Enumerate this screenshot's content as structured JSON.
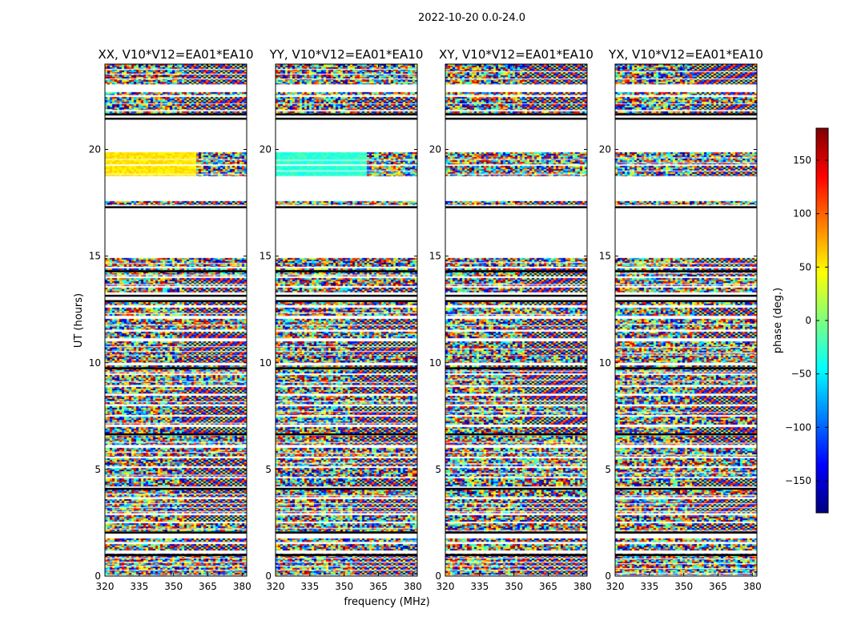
{
  "figure": {
    "title": "2022-10-20 0.0-24.0",
    "xlabel": "frequency (MHz)",
    "ylabel": "UT (hours)"
  },
  "chart_data": {
    "type": "heatmap",
    "title": "2022-10-20 0.0-24.0",
    "xlabel": "frequency (MHz)",
    "ylabel": "UT (hours)",
    "xlim": [
      320,
      382
    ],
    "ylim": [
      0,
      24
    ],
    "x_ticks": [
      "320",
      "335",
      "350",
      "365",
      "380"
    ],
    "y_ticks": [
      "0",
      "5",
      "10",
      "15",
      "20"
    ],
    "colormap": "jet",
    "panels": [
      {
        "title": "XX, V10*V12=EA01*EA10"
      },
      {
        "title": "YY, V10*V12=EA01*EA10"
      },
      {
        "title": "XY, V10*V12=EA01*EA10"
      },
      {
        "title": "YX, V10*V12=EA01*EA10"
      }
    ],
    "colorbar": {
      "label": "phase (deg.)",
      "range": [
        -180,
        180
      ],
      "ticks": [
        "150",
        "100",
        "50",
        "0",
        "−50",
        "−100",
        "−150"
      ],
      "colors": [
        "#00007f",
        "#0000ff",
        "#007fff",
        "#00ffff",
        "#7fff7f",
        "#ffff00",
        "#ff7f00",
        "#ff0000",
        "#7f0000"
      ]
    },
    "data_bands_hours": [
      [
        0.05,
        1.05
      ],
      [
        1.2,
        1.5
      ],
      [
        1.6,
        1.75
      ],
      [
        2.05,
        2.45
      ],
      [
        2.55,
        2.85
      ],
      [
        2.95,
        3.6
      ],
      [
        3.7,
        4.05
      ],
      [
        4.2,
        4.55
      ],
      [
        4.65,
        5.05
      ],
      [
        5.15,
        5.5
      ],
      [
        5.6,
        6.0
      ],
      [
        6.15,
        6.55
      ],
      [
        6.65,
        6.95
      ],
      [
        7.1,
        7.45
      ],
      [
        7.55,
        7.95
      ],
      [
        8.05,
        8.45
      ],
      [
        8.55,
        8.85
      ],
      [
        8.95,
        9.4
      ],
      [
        9.5,
        9.85
      ],
      [
        10.0,
        10.3
      ],
      [
        10.35,
        11.0
      ],
      [
        11.15,
        11.45
      ],
      [
        11.55,
        12.05
      ],
      [
        12.2,
        12.55
      ],
      [
        12.7,
        12.9
      ],
      [
        13.3,
        13.5
      ],
      [
        13.6,
        13.95
      ],
      [
        14.05,
        14.4
      ],
      [
        14.5,
        14.9
      ],
      [
        17.4,
        17.55
      ],
      [
        18.75,
        19.2
      ],
      [
        19.3,
        19.85
      ],
      [
        21.6,
        21.75
      ],
      [
        21.85,
        22.1
      ],
      [
        22.15,
        22.45
      ],
      [
        22.55,
        22.65
      ],
      [
        23.05,
        24.0
      ]
    ],
    "black_lines_hours": [
      21.65,
      21.45,
      17.3,
      14.3,
      13.15,
      12.9,
      9.75,
      6.65,
      4.1,
      2.05,
      1.0
    ]
  }
}
